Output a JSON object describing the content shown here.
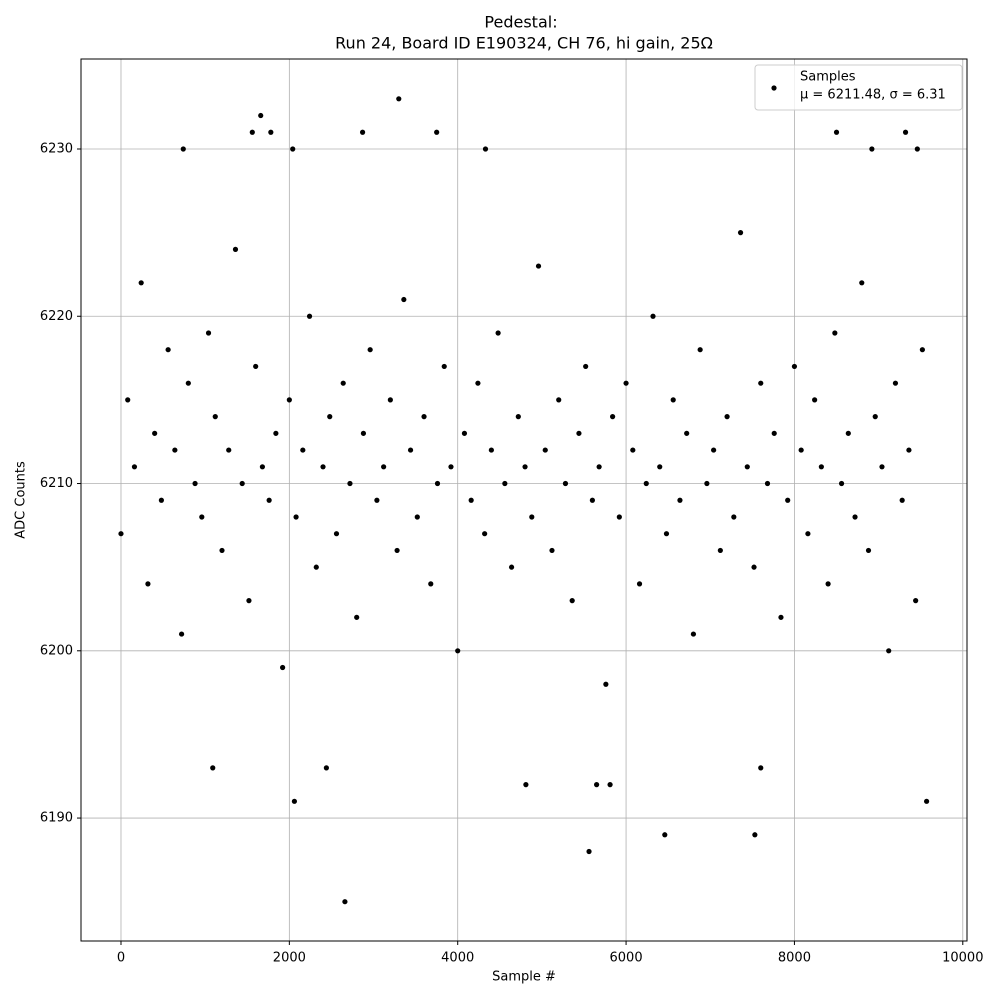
{
  "chart_data": {
    "type": "scatter",
    "title": "Pedestal:",
    "subtitle": "Run 24, Board ID E190324, CH 76, hi gain, 25Ω",
    "x_label": "Sample #",
    "y_label": "ADC Counts",
    "xlim": [
      -475,
      10050
    ],
    "ylim": [
      6182.65,
      6235.38
    ],
    "xticks": [
      0,
      2000,
      4000,
      6000,
      8000,
      10000
    ],
    "yticks": [
      6190,
      6200,
      6210,
      6220,
      6230
    ],
    "grid": true,
    "legend": "upper right",
    "legend_note": "μ = 6211.48, σ = 6.31",
    "series": [
      {
        "name": "Samples",
        "color": "#000000",
        "x": [
          0,
          80,
          160,
          240,
          320,
          400,
          480,
          560,
          640,
          720,
          800,
          880,
          960,
          1040,
          1120,
          1200,
          1280,
          1360,
          1440,
          1520,
          1600,
          1680,
          1760,
          1840,
          1920,
          2000,
          2080,
          2160,
          2240,
          2320,
          2400,
          2480,
          2560,
          2640,
          2720,
          2800,
          2880,
          2960,
          3040,
          3120,
          3200,
          3280,
          3360,
          3440,
          3520,
          3600,
          3680,
          3760,
          3840,
          3920,
          4000,
          4080,
          4160,
          4240,
          4320,
          4400,
          4480,
          4560,
          4640,
          4720,
          4800,
          4880,
          4960,
          5040,
          5120,
          5200,
          5280,
          5360,
          5440,
          5520,
          5600,
          5680,
          5760,
          5840,
          5920,
          6000,
          6080,
          6160,
          6240,
          6320,
          6400,
          6480,
          6560,
          6640,
          6720,
          6800,
          6880,
          6960,
          7040,
          7120,
          7200,
          7280,
          7360,
          7440,
          7520,
          7600,
          7680,
          7760,
          7840,
          7920,
          8000,
          8080,
          8160,
          8240,
          8320,
          8400,
          8480,
          8560,
          8640,
          8720,
          8800,
          8880,
          8960,
          9040,
          9120,
          9200,
          9280,
          9360,
          9440,
          9520,
          2660,
          5560,
          6460,
          7530,
          2060,
          9570,
          1090,
          2440,
          4810,
          5650,
          5810,
          7600,
          3300,
          1660,
          1560,
          1780,
          2870,
          3750,
          8500,
          9320,
          740,
          2040,
          4330,
          8920,
          9460
        ],
        "values": [
          6207,
          6215,
          6211,
          6222,
          6204,
          6213,
          6209,
          6218,
          6212,
          6201,
          6216,
          6210,
          6208,
          6219,
          6214,
          6206,
          6212,
          6224,
          6210,
          6203,
          6217,
          6211,
          6209,
          6213,
          6199,
          6215,
          6208,
          6212,
          6220,
          6205,
          6211,
          6214,
          6207,
          6216,
          6210,
          6202,
          6213,
          6218,
          6209,
          6211,
          6215,
          6206,
          6221,
          6212,
          6208,
          6214,
          6204,
          6210,
          6217,
          6211,
          6200,
          6213,
          6209,
          6216,
          6207,
          6212,
          6219,
          6210,
          6205,
          6214,
          6211,
          6208,
          6223,
          6212,
          6206,
          6215,
          6210,
          6203,
          6213,
          6217,
          6209,
          6211,
          6198,
          6214,
          6208,
          6216,
          6212,
          6204,
          6210,
          6220,
          6211,
          6207,
          6215,
          6209,
          6213,
          6201,
          6218,
          6210,
          6212,
          6206,
          6214,
          6208,
          6225,
          6211,
          6205,
          6216,
          6210,
          6213,
          6202,
          6209,
          6217,
          6212,
          6207,
          6215,
          6211,
          6204,
          6219,
          6210,
          6213,
          6208,
          6222,
          6206,
          6214,
          6211,
          6200,
          6216,
          6209,
          6212,
          6203,
          6218,
          6185,
          6188,
          6189,
          6189,
          6191,
          6191,
          6193,
          6193,
          6192,
          6192,
          6192,
          6193,
          6233,
          6232,
          6231,
          6231,
          6231,
          6231,
          6231,
          6231,
          6230,
          6230,
          6230,
          6230,
          6230
        ]
      }
    ]
  }
}
